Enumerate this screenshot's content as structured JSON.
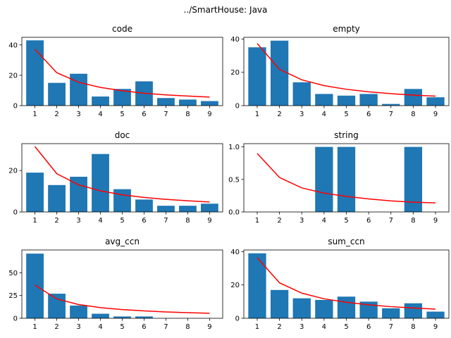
{
  "suptitle": "../SmartHouse: Java",
  "colors": {
    "bar": "#1f77b4",
    "line": "#ff0000"
  },
  "chart_data": [
    {
      "type": "bar",
      "title": "code",
      "categories": [
        1,
        2,
        3,
        4,
        5,
        6,
        7,
        8,
        9
      ],
      "values": [
        43,
        15,
        21,
        6,
        11,
        16,
        5,
        4,
        3
      ],
      "line": [
        37.1,
        21.7,
        15.4,
        12.0,
        9.8,
        8.2,
        7.1,
        6.3,
        5.6
      ],
      "ylim": [
        0,
        45
      ],
      "yticks": [
        0,
        20,
        40
      ],
      "ytick_labels": [
        "0",
        "20",
        "40"
      ]
    },
    {
      "type": "bar",
      "title": "empty",
      "categories": [
        1,
        2,
        3,
        4,
        5,
        6,
        7,
        8,
        9
      ],
      "values": [
        35,
        39,
        14,
        7,
        6,
        7,
        1,
        10,
        5
      ],
      "line": [
        37.3,
        21.8,
        15.5,
        12.0,
        9.8,
        8.3,
        7.2,
        6.3,
        5.7
      ],
      "ylim": [
        0,
        41
      ],
      "yticks": [
        0,
        20,
        40
      ],
      "ytick_labels": [
        "0",
        "20",
        "40"
      ]
    },
    {
      "type": "bar",
      "title": "doc",
      "categories": [
        1,
        2,
        3,
        4,
        5,
        6,
        7,
        8,
        9
      ],
      "values": [
        19,
        13,
        17,
        28,
        11,
        6,
        3,
        3,
        4
      ],
      "line": [
        31.6,
        18.5,
        13.1,
        10.2,
        8.3,
        7.0,
        6.1,
        5.4,
        4.8
      ],
      "ylim": [
        0,
        33
      ],
      "yticks": [
        0,
        20
      ],
      "ytick_labels": [
        "0",
        "20"
      ]
    },
    {
      "type": "bar",
      "title": "string",
      "categories": [
        1,
        2,
        3,
        4,
        5,
        6,
        7,
        8,
        9
      ],
      "values": [
        0,
        0,
        0,
        1,
        1,
        0,
        0,
        1,
        0
      ],
      "line": [
        0.9,
        0.53,
        0.37,
        0.29,
        0.24,
        0.2,
        0.17,
        0.15,
        0.14
      ],
      "ylim": [
        0,
        1.05
      ],
      "yticks": [
        0,
        0.5,
        1.0
      ],
      "ytick_labels": [
        "0.0",
        "0.5",
        "1.0"
      ]
    },
    {
      "type": "bar",
      "title": "avg_ccn",
      "categories": [
        1,
        2,
        3,
        4,
        5,
        6,
        7,
        8,
        9
      ],
      "values": [
        71,
        27,
        14,
        5,
        2,
        2,
        0,
        0,
        0
      ],
      "line": [
        36.4,
        21.3,
        15.1,
        11.7,
        9.6,
        8.1,
        7.0,
        6.2,
        5.5
      ],
      "ylim": [
        0,
        75
      ],
      "yticks": [
        0,
        25,
        50
      ],
      "ytick_labels": [
        "0",
        "25",
        "50"
      ]
    },
    {
      "type": "bar",
      "title": "sum_ccn",
      "categories": [
        1,
        2,
        3,
        4,
        5,
        6,
        7,
        8,
        9
      ],
      "values": [
        39,
        17,
        12,
        11,
        13,
        10,
        6,
        9,
        4
      ],
      "line": [
        36.4,
        21.3,
        15.1,
        11.7,
        9.6,
        8.1,
        7.0,
        6.2,
        5.5
      ],
      "ylim": [
        0,
        41
      ],
      "yticks": [
        0,
        20,
        40
      ],
      "ytick_labels": [
        "0",
        "20",
        "40"
      ]
    }
  ]
}
